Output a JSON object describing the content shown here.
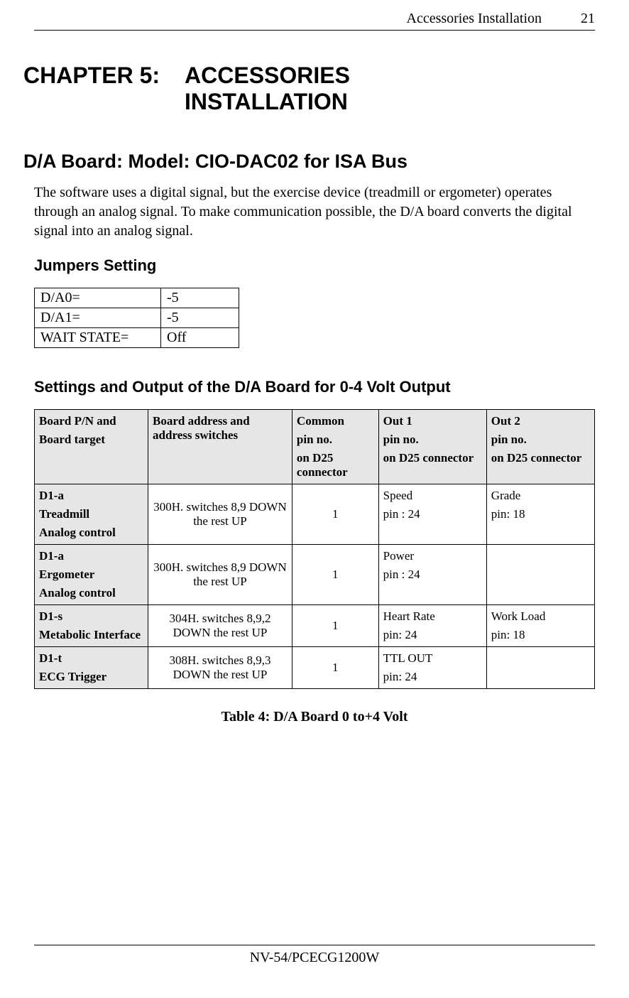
{
  "header": {
    "title": "Accessories Installation",
    "page": "21"
  },
  "chapter": {
    "label": "CHAPTER 5:",
    "line1": "ACCESSORIES",
    "line2": "INSTALLATION"
  },
  "section1": {
    "heading": "D/A Board: Model: CIO-DAC02 for ISA Bus",
    "paragraph": "The software uses a digital signal, but the exercise device (treadmill or ergometer) operates through an analog signal. To make communication possible, the D/A board converts the digital signal into an analog signal."
  },
  "jumpers": {
    "heading": "Jumpers Setting",
    "rows": [
      {
        "label": "D/A0=",
        "value": "-5"
      },
      {
        "label": "D/A1=",
        "value": "-5"
      },
      {
        "label": "WAIT STATE=",
        "value": "Off"
      }
    ]
  },
  "settings": {
    "heading": "Settings and Output of the D/A Board for 0-4 Volt Output",
    "headers": {
      "col1a": "Board P/N and",
      "col1b": "Board target",
      "col2a": "Board address and address switches",
      "col3a": "Common",
      "col3b": "pin no.",
      "col3c": "on D25 connector",
      "col4a": "Out 1",
      "col4b": "pin no.",
      "col4c": "on D25 connector",
      "col5a": "Out 2",
      "col5b": "pin no.",
      "col5c": "on D25 connector"
    },
    "rows": [
      {
        "c1a": "D1-a",
        "c1b": "Treadmill",
        "c1c": "Analog control",
        "c2a": "300H. switches 8,9 DOWN the rest UP",
        "c3": "1",
        "c4a": "Speed",
        "c4b": "pin : 24",
        "c5a": "Grade",
        "c5b": "pin: 18"
      },
      {
        "c1a": "D1-a",
        "c1b": "Ergometer",
        "c1c": "Analog control",
        "c2a": "300H. switches 8,9 DOWN the rest UP",
        "c3": "1",
        "c4a": "Power",
        "c4b": "pin : 24",
        "c5a": "",
        "c5b": ""
      },
      {
        "c1a": "D1-s",
        "c1b": "Metabolic Interface",
        "c1c": "",
        "c2a": "304H. switches 8,9,2 DOWN the rest UP",
        "c3": "1",
        "c4a": "Heart Rate",
        "c4b": "pin: 24",
        "c5a": "Work Load",
        "c5b": "pin: 18"
      },
      {
        "c1a": "D1-t",
        "c1b": "ECG Trigger",
        "c1c": "",
        "c2a": "308H. switches 8,9,3 DOWN the rest UP",
        "c3": "1",
        "c4a": "TTL OUT",
        "c4b": "pin: 24",
        "c5a": "",
        "c5b": ""
      }
    ],
    "caption": "Table 4: D/A Board 0 to+4 Volt"
  },
  "footer": {
    "text": "NV-54/PCECG1200W"
  }
}
